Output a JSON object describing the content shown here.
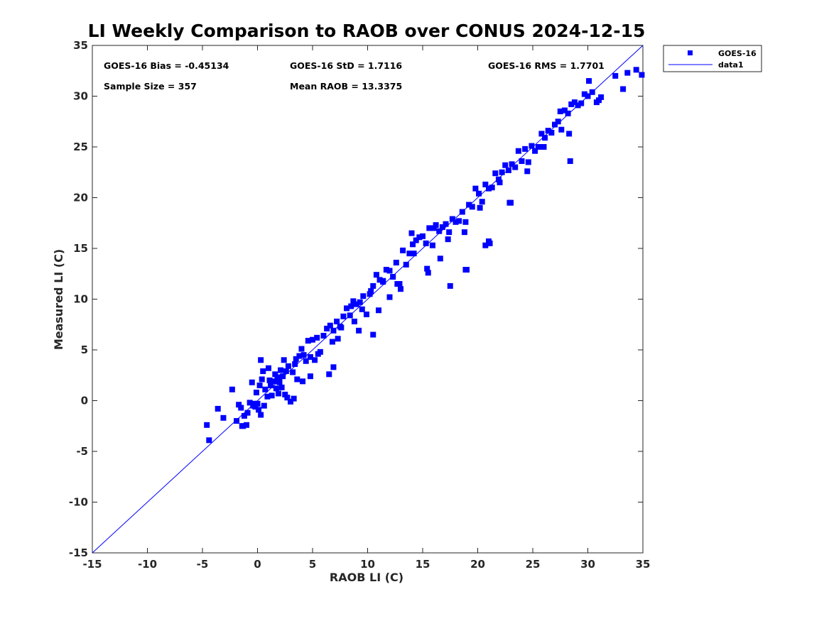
{
  "chart_data": {
    "type": "scatter",
    "title": "LI Weekly Comparison to RAOB over CONUS 2024-12-15",
    "xlabel": "RAOB LI (C)",
    "ylabel": "Measured LI (C)",
    "xlim": [
      -15,
      35
    ],
    "ylim": [
      -15,
      35
    ],
    "xticks": [
      "-15",
      "-10",
      "-5",
      "0",
      "5",
      "10",
      "15",
      "20",
      "25",
      "30",
      "35"
    ],
    "yticks": [
      "-15",
      "-10",
      "-5",
      "0",
      "5",
      "10",
      "15",
      "20",
      "25",
      "30",
      "35"
    ],
    "grid": false,
    "legend_position": "top-right-outside",
    "stats": {
      "bias": "GOES-16 Bias = -0.45134",
      "std": "GOES-16 StD = 1.7116",
      "rms": "GOES-16 RMS = 1.7701",
      "sample_size": "Sample Size = 357",
      "mean_raob": "Mean RAOB = 13.3375"
    },
    "series": [
      {
        "name": "GOES-16",
        "marker": "square",
        "color": "#0000ff",
        "x": [
          -4.6,
          -4.4,
          -3.6,
          -3.1,
          -2.3,
          -1.9,
          -1.7,
          -1.5,
          -1.3,
          -1.2,
          -1.0,
          -0.9,
          -0.5,
          -0.3,
          -0.2,
          0.0,
          0.1,
          0.2,
          0.3,
          0.4,
          -0.4,
          -0.1,
          0.5,
          0.7,
          0.9,
          1.1,
          1.3,
          1.5,
          1.6,
          1.7,
          1.8,
          1.9,
          2.0,
          2.1,
          2.2,
          2.3,
          2.4,
          2.5,
          2.6,
          2.8,
          3.0,
          3.2,
          3.4,
          3.6,
          3.8,
          4.0,
          4.2,
          4.4,
          4.6,
          4.8,
          5.0,
          5.2,
          5.4,
          5.7,
          6.0,
          6.3,
          6.6,
          6.9,
          7.2,
          7.5,
          7.8,
          8.1,
          8.4,
          8.7,
          9.0,
          9.3,
          9.6,
          9.9,
          10.2,
          10.5,
          10.8,
          11.1,
          11.4,
          11.7,
          12.0,
          12.3,
          12.6,
          12.9,
          13.2,
          13.5,
          13.8,
          14.1,
          14.4,
          14.7,
          15.0,
          15.3,
          15.6,
          15.9,
          16.2,
          16.5,
          16.8,
          17.1,
          17.4,
          17.7,
          18.0,
          18.3,
          18.6,
          18.9,
          19.2,
          19.5,
          19.8,
          20.1,
          20.4,
          20.7,
          21.0,
          21.3,
          21.6,
          21.9,
          22.2,
          22.5,
          22.8,
          23.1,
          23.4,
          23.7,
          24.0,
          24.3,
          24.6,
          24.9,
          25.2,
          25.5,
          25.8,
          26.1,
          26.4,
          26.7,
          27.0,
          27.3,
          27.6,
          27.9,
          28.2,
          28.5,
          28.8,
          29.1,
          29.4,
          29.7,
          30.0,
          30.4,
          30.8,
          31.2,
          32.5,
          33.2,
          33.6,
          34.4,
          34.9,
          30.1,
          31.0,
          28.3,
          27.5,
          26.0,
          24.5,
          23.0,
          22.0,
          21.0,
          20.2,
          19.0,
          18.8,
          17.5,
          16.0,
          15.5,
          14.0,
          13.0,
          12.0,
          11.0,
          10.3,
          9.5,
          8.8,
          7.6,
          6.8,
          5.5,
          4.8,
          4.1,
          3.3,
          2.7,
          1.2,
          0.6,
          -0.7,
          -1.4,
          6.5,
          6.9,
          10.5,
          18.9,
          20.7,
          21.1,
          22.9,
          28.4,
          14.2,
          15.4,
          16.6,
          17.3,
          12.7,
          11.4,
          9.2,
          8.5,
          7.3,
          3.5,
          2.0,
          1.0,
          0.3
        ],
        "y": [
          -2.4,
          -3.9,
          -0.8,
          -1.7,
          1.1,
          -2.0,
          -0.4,
          -0.7,
          -2.5,
          -1.5,
          -2.4,
          -1.2,
          1.8,
          -0.3,
          -0.6,
          -0.3,
          -0.9,
          1.5,
          -1.4,
          2.1,
          -0.5,
          0.8,
          2.9,
          1.1,
          0.4,
          2.0,
          0.5,
          1.9,
          2.6,
          1.2,
          2.3,
          0.7,
          1.8,
          3.0,
          1.3,
          2.4,
          4.0,
          0.6,
          2.9,
          3.4,
          -0.1,
          2.8,
          3.6,
          2.1,
          4.4,
          5.1,
          4.5,
          3.9,
          5.9,
          4.3,
          6.0,
          4.0,
          6.2,
          4.8,
          6.4,
          7.1,
          7.4,
          6.9,
          7.8,
          7.3,
          8.3,
          9.1,
          8.4,
          9.8,
          9.5,
          9.7,
          10.3,
          8.5,
          10.5,
          11.3,
          12.4,
          11.9,
          11.7,
          12.9,
          12.8,
          12.2,
          13.6,
          11.5,
          14.8,
          13.4,
          14.5,
          15.4,
          15.8,
          16.1,
          16.2,
          15.5,
          17.0,
          15.3,
          17.3,
          16.7,
          17.1,
          17.4,
          16.6,
          17.9,
          17.6,
          17.7,
          18.6,
          17.6,
          19.3,
          19.1,
          20.9,
          20.4,
          19.6,
          21.3,
          20.9,
          21.0,
          22.4,
          21.8,
          22.5,
          23.2,
          22.7,
          23.3,
          23.0,
          24.6,
          23.6,
          24.8,
          23.5,
          25.1,
          24.6,
          25.0,
          26.3,
          25.9,
          26.6,
          26.4,
          27.2,
          27.5,
          26.7,
          28.6,
          28.3,
          29.2,
          29.4,
          29.1,
          29.3,
          30.2,
          30.0,
          30.4,
          29.4,
          29.9,
          32.0,
          30.7,
          32.3,
          32.6,
          32.1,
          31.5,
          29.6,
          26.3,
          28.5,
          25.0,
          22.6,
          19.5,
          21.5,
          15.7,
          19.0,
          12.9,
          16.6,
          11.3,
          17.0,
          12.6,
          16.5,
          11.0,
          10.2,
          8.9,
          10.8,
          9.0,
          7.8,
          7.2,
          5.8,
          4.6,
          2.4,
          1.9,
          0.2,
          0.3,
          1.5,
          -0.5,
          -0.2,
          -2.5,
          2.6,
          3.3,
          6.5,
          12.9,
          15.3,
          15.5,
          19.5,
          23.6,
          14.5,
          13.0,
          14.0,
          15.9,
          11.5,
          11.8,
          6.9,
          9.3,
          6.1,
          4.1,
          2.3,
          3.2,
          4.0
        ]
      },
      {
        "name": "data1",
        "type": "line",
        "color": "#0000ff",
        "x": [
          -15,
          35
        ],
        "y": [
          -15,
          35
        ]
      }
    ]
  }
}
